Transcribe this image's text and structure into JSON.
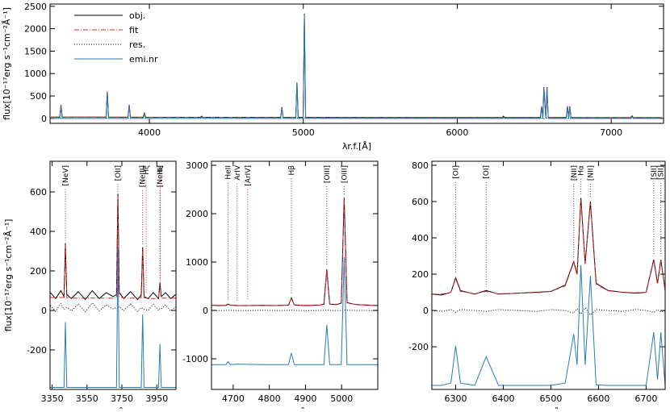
{
  "chart_data": [
    {
      "type": "line",
      "x_label": "λr.f.[Å]",
      "y_label": "flux[10⁻¹⁷erg s⁻¹cm⁻²Å⁻¹]",
      "legend": "upper left",
      "xlim": [
        3355,
        7340
      ],
      "ylim": [
        -110,
        2550
      ],
      "xticks": [
        4000,
        5000,
        6000,
        7000
      ],
      "yticks": [
        0,
        500,
        1000,
        1500,
        2000,
        2500
      ],
      "x": [
        3360,
        3418,
        3426,
        3434,
        3719,
        3727,
        3735,
        3861,
        3869,
        3877,
        3960,
        3968,
        3976,
        4332,
        4340,
        4348,
        4853,
        4861,
        4869,
        4951,
        4959,
        4967,
        4999,
        5007,
        5015,
        6292,
        6300,
        6308,
        6540,
        6548,
        6556,
        6563,
        6575,
        6583,
        6591,
        6708,
        6716,
        6724,
        6731,
        6739,
        7127,
        7135,
        7143,
        7330
      ],
      "series": [
        {
          "name": "obj.",
          "color": "#000000",
          "style": "solid",
          "values": [
            30,
            30,
            300,
            32,
            30,
            600,
            30,
            28,
            300,
            28,
            28,
            120,
            28,
            25,
            50,
            25,
            22,
            250,
            22,
            22,
            800,
            22,
            22,
            2330,
            22,
            20,
            50,
            20,
            20,
            270,
            30,
            700,
            30,
            700,
            20,
            20,
            270,
            20,
            270,
            20,
            18,
            60,
            18,
            18
          ]
        },
        {
          "name": "fit",
          "color": "#e3242b",
          "style": "dashdot",
          "values": [
            30,
            30,
            295,
            32,
            30,
            595,
            30,
            28,
            295,
            28,
            28,
            118,
            28,
            25,
            48,
            25,
            22,
            248,
            22,
            22,
            795,
            22,
            22,
            2320,
            22,
            20,
            48,
            20,
            20,
            265,
            28,
            695,
            28,
            692,
            20,
            20,
            265,
            20,
            265,
            20,
            18,
            58,
            18,
            18
          ]
        },
        {
          "name": "res.",
          "color": "#000000",
          "style": "dotted",
          "values": [
            3,
            -2,
            5,
            2,
            -3,
            10,
            -2,
            2,
            8,
            -2,
            3,
            0,
            -3,
            2,
            -2,
            3,
            -2,
            5,
            2,
            -3,
            10,
            2,
            -2,
            15,
            2,
            -2,
            3,
            2,
            -2,
            5,
            3,
            -5,
            2,
            8,
            -2,
            2,
            6,
            -2,
            5,
            2,
            -2,
            3,
            2,
            -2
          ]
        },
        {
          "name": "emi.nr",
          "color": "#2a7ab8",
          "style": "solid",
          "values": [
            0,
            0,
            270,
            0,
            0,
            570,
            0,
            0,
            270,
            0,
            0,
            95,
            0,
            0,
            25,
            0,
            0,
            230,
            0,
            0,
            780,
            0,
            0,
            2300,
            0,
            0,
            30,
            0,
            0,
            250,
            0,
            670,
            0,
            670,
            0,
            0,
            250,
            0,
            250,
            0,
            0,
            40,
            0,
            0
          ]
        }
      ]
    },
    {
      "type": "line",
      "x_label": "λr.f.[Å]",
      "y_label": "flux[10⁻¹⁷erg s⁻¹cm⁻²Å⁻¹]",
      "xlim": [
        3338,
        4060
      ],
      "ylim": [
        -400,
        755
      ],
      "xticks": [
        3350,
        3550,
        3750,
        3950
      ],
      "yticks": [
        -200,
        0,
        200,
        400,
        600
      ],
      "x": [
        3340,
        3370,
        3400,
        3418,
        3426,
        3434,
        3460,
        3500,
        3540,
        3580,
        3620,
        3660,
        3700,
        3719,
        3727,
        3735,
        3760,
        3800,
        3840,
        3861,
        3869,
        3877,
        3900,
        3930,
        3960,
        3968,
        3976,
        4000,
        4030,
        4058
      ],
      "series": [
        {
          "color": "#000000",
          "style": "solid",
          "values": [
            90,
            60,
            100,
            70,
            340,
            80,
            60,
            95,
            55,
            100,
            60,
            90,
            70,
            80,
            590,
            90,
            60,
            95,
            55,
            80,
            320,
            70,
            60,
            90,
            60,
            140,
            70,
            90,
            60,
            80
          ]
        },
        {
          "color": "#e3242b",
          "style": "dashdot",
          "values": [
            65,
            65,
            65,
            65,
            330,
            65,
            62,
            62,
            62,
            62,
            62,
            62,
            62,
            65,
            580,
            70,
            62,
            62,
            62,
            65,
            310,
            65,
            60,
            60,
            60,
            130,
            62,
            62,
            62,
            62
          ]
        },
        {
          "color": "#000000",
          "style": "dotted",
          "values": [
            25,
            -5,
            35,
            5,
            10,
            15,
            -2,
            33,
            -7,
            38,
            -2,
            28,
            8,
            15,
            10,
            20,
            -2,
            33,
            -7,
            15,
            10,
            5,
            0,
            30,
            0,
            10,
            8,
            28,
            -2,
            18
          ]
        },
        {
          "color": "#2a7ab8",
          "style": "solid",
          "values": [
            -390,
            -390,
            -390,
            -390,
            -60,
            -390,
            -390,
            -390,
            -390,
            -390,
            -390,
            -390,
            -390,
            -390,
            320,
            -390,
            -390,
            -390,
            -390,
            -390,
            -20,
            -390,
            -390,
            -390,
            -390,
            -170,
            -390,
            -390,
            -390,
            -390
          ]
        }
      ],
      "annotations": [
        {
          "text": "[NeV]",
          "x": 3426,
          "color": "#000000"
        },
        {
          "text": "[OII]",
          "x": 3727,
          "color": "#000000"
        },
        {
          "text": "[NeIII]",
          "x": 3869,
          "color": "#000000"
        },
        {
          "text": "Hζ",
          "x": 3889,
          "color": "#e3242b"
        },
        {
          "text": "[NeIII]",
          "x": 3968,
          "color": "#000000"
        },
        {
          "text": "Hε",
          "x": 3970,
          "color": "#e3242b"
        }
      ]
    },
    {
      "type": "line",
      "x_label": "λr.f.[Å]",
      "xlim": [
        4640,
        5100
      ],
      "ylim": [
        -1633,
        3083
      ],
      "xticks": [
        4700,
        4800,
        4900,
        5000
      ],
      "yticks": [
        -1000,
        0,
        1000,
        2000,
        3000
      ],
      "x": [
        4640,
        4660,
        4680,
        4686,
        4692,
        4711,
        4740,
        4780,
        4820,
        4853,
        4861,
        4869,
        4900,
        4940,
        4951,
        4959,
        4967,
        4985,
        4999,
        5007,
        5015,
        5040,
        5070,
        5100
      ],
      "series": [
        {
          "color": "#000000",
          "style": "solid",
          "values": [
            110,
            100,
            105,
            130,
            110,
            100,
            100,
            105,
            100,
            110,
            260,
            115,
            100,
            110,
            130,
            850,
            130,
            120,
            150,
            2330,
            160,
            120,
            110,
            100
          ]
        },
        {
          "color": "#e3242b",
          "style": "dashdot",
          "values": [
            105,
            105,
            105,
            125,
            108,
            102,
            102,
            102,
            102,
            110,
            255,
            112,
            105,
            110,
            128,
            840,
            130,
            125,
            150,
            2320,
            155,
            120,
            110,
            105
          ]
        },
        {
          "color": "#000000",
          "style": "dotted",
          "values": [
            5,
            -5,
            0,
            5,
            2,
            -2,
            -2,
            3,
            -2,
            0,
            5,
            3,
            -5,
            0,
            2,
            10,
            0,
            -5,
            0,
            10,
            5,
            0,
            0,
            -5
          ]
        },
        {
          "color": "#2a7ab8",
          "style": "solid",
          "values": [
            -1120,
            -1120,
            -1120,
            -1060,
            -1120,
            -1110,
            -1115,
            -1120,
            -1120,
            -1120,
            -880,
            -1120,
            -1120,
            -1120,
            -1120,
            -300,
            -1120,
            -1120,
            -1120,
            1100,
            -1120,
            -1120,
            -1120,
            -1120
          ]
        }
      ],
      "annotations": [
        {
          "text": "HeII",
          "x": 4686,
          "color": "#000000"
        },
        {
          "text": "ArIV",
          "x": 4711,
          "color": "#000000"
        },
        {
          "text": "[ArIV]",
          "x": 4740,
          "color": "#e3242b"
        },
        {
          "text": "Hβ",
          "x": 4861,
          "color": "#000000"
        },
        {
          "text": "[OIII]",
          "x": 4959,
          "color": "#000000"
        },
        {
          "text": "[OIII]",
          "x": 5007,
          "color": "#000000"
        }
      ]
    },
    {
      "type": "line",
      "x_label": "λr.f.[Å]",
      "xlim": [
        6250,
        6740
      ],
      "ylim": [
        -435,
        822
      ],
      "xticks": [
        6300,
        6400,
        6500,
        6600,
        6700
      ],
      "yticks": [
        -200,
        0,
        200,
        400,
        600,
        800
      ],
      "x": [
        6250,
        6270,
        6290,
        6300,
        6310,
        6340,
        6364,
        6390,
        6430,
        6470,
        6500,
        6530,
        6548,
        6555,
        6563,
        6572,
        6583,
        6595,
        6620,
        6650,
        6680,
        6700,
        6716,
        6724,
        6731,
        6740
      ],
      "series": [
        {
          "color": "#000000",
          "style": "solid",
          "values": [
            90,
            85,
            100,
            180,
            110,
            90,
            110,
            90,
            95,
            100,
            105,
            140,
            270,
            200,
            620,
            260,
            600,
            150,
            110,
            100,
            95,
            100,
            280,
            150,
            280,
            110
          ]
        },
        {
          "color": "#e3242b",
          "style": "dashdot",
          "values": [
            90,
            90,
            100,
            175,
            105,
            92,
            105,
            92,
            95,
            98,
            105,
            135,
            265,
            195,
            610,
            255,
            590,
            145,
            108,
            100,
            98,
            100,
            275,
            145,
            275,
            108
          ]
        },
        {
          "color": "#000000",
          "style": "dotted",
          "values": [
            0,
            -5,
            5,
            -10,
            5,
            0,
            -5,
            5,
            0,
            -5,
            5,
            0,
            -15,
            10,
            -20,
            15,
            -25,
            5,
            0,
            -5,
            5,
            0,
            -10,
            5,
            -10,
            0
          ]
        },
        {
          "color": "#2a7ab8",
          "style": "solid",
          "values": [
            -413,
            -413,
            -400,
            -195,
            -400,
            -413,
            -255,
            -413,
            -413,
            -413,
            -413,
            -400,
            -130,
            -300,
            250,
            -300,
            190,
            -410,
            -413,
            -413,
            -413,
            -413,
            -120,
            -380,
            -120,
            -413
          ]
        }
      ],
      "annotations": [
        {
          "text": "[OI]",
          "x": 6300,
          "color": "#000000"
        },
        {
          "text": "[OI]",
          "x": 6364,
          "color": "#000000"
        },
        {
          "text": "[NII]",
          "x": 6548,
          "color": "#000000"
        },
        {
          "text": "Hα",
          "x": 6563,
          "color": "#000000"
        },
        {
          "text": "[NII]",
          "x": 6583,
          "color": "#000000"
        },
        {
          "text": "[SII]",
          "x": 6716,
          "color": "#000000"
        },
        {
          "text": "[SII]",
          "x": 6731,
          "color": "#000000"
        }
      ]
    }
  ]
}
